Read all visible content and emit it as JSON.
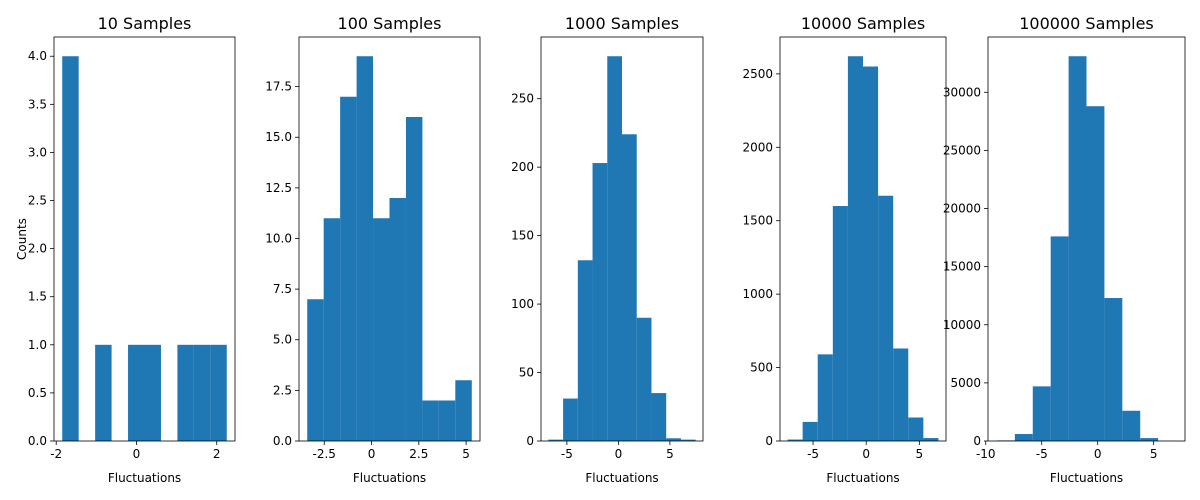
{
  "figure": {
    "ylabel": "Counts",
    "bar_color": "#1f77b4"
  },
  "chart_data": [
    {
      "type": "bar",
      "title": "10 Samples",
      "xlabel": "Fluctuations",
      "ylabel": "Counts",
      "bin_edges": [
        -1.85,
        -1.44,
        -1.03,
        -0.62,
        -0.21,
        0.2,
        0.61,
        1.02,
        1.43,
        1.84,
        2.25
      ],
      "values": [
        4,
        0,
        1,
        0,
        1,
        1,
        0,
        1,
        1,
        1
      ],
      "xlim": [
        -2.055,
        2.455
      ],
      "ylim": [
        0,
        4.2
      ],
      "xticks": [
        -2,
        0,
        2
      ],
      "yticks": [
        0.0,
        0.5,
        1.0,
        1.5,
        2.0,
        2.5,
        3.0,
        3.5,
        4.0
      ]
    },
    {
      "type": "bar",
      "title": "100 Samples",
      "xlabel": "Fluctuations",
      "bin_edges": [
        -3.4,
        -2.53,
        -1.66,
        -0.79,
        0.08,
        0.95,
        1.82,
        2.69,
        3.56,
        4.43,
        5.3
      ],
      "values": [
        7,
        11,
        17,
        19,
        11,
        12,
        16,
        2,
        2,
        3
      ],
      "xlim": [
        -3.835,
        5.735
      ],
      "ylim": [
        0,
        19.95
      ],
      "xticks": [
        -2.5,
        0.0,
        2.5,
        5.0
      ],
      "yticks": [
        0.0,
        2.5,
        5.0,
        7.5,
        10.0,
        12.5,
        15.0,
        17.5
      ]
    },
    {
      "type": "bar",
      "title": "1000 Samples",
      "xlabel": "Fluctuations",
      "bin_edges": [
        -6.8,
        -5.37,
        -3.94,
        -2.51,
        -1.08,
        0.35,
        1.78,
        3.21,
        4.64,
        6.07,
        7.5
      ],
      "values": [
        1,
        31,
        132,
        203,
        281,
        224,
        90,
        35,
        2,
        1
      ],
      "xlim": [
        -7.515,
        8.215
      ],
      "ylim": [
        0,
        295.05
      ],
      "xticks": [
        -5,
        0,
        5
      ],
      "yticks": [
        0,
        50,
        100,
        150,
        200,
        250
      ]
    },
    {
      "type": "bar",
      "title": "10000 Samples",
      "xlabel": "Fluctuations",
      "bin_edges": [
        -7.4,
        -5.98,
        -4.56,
        -3.14,
        -1.72,
        -0.3,
        1.12,
        2.54,
        3.96,
        5.38,
        6.8
      ],
      "values": [
        10,
        130,
        590,
        1600,
        2620,
        2550,
        1670,
        630,
        160,
        20
      ],
      "xlim": [
        -8.11,
        7.51
      ],
      "ylim": [
        0,
        2751
      ],
      "xticks": [
        -5,
        0,
        5
      ],
      "yticks": [
        0,
        500,
        1000,
        1500,
        2000,
        2500
      ]
    },
    {
      "type": "bar",
      "title": "100000 Samples",
      "xlabel": "Fluctuations",
      "bin_edges": [
        -9.0,
        -7.4,
        -5.8,
        -4.2,
        -2.6,
        -1.0,
        0.6,
        2.2,
        3.8,
        5.4,
        7.0
      ],
      "values": [
        50,
        600,
        4700,
        17600,
        33100,
        28800,
        12300,
        2600,
        250,
        10
      ],
      "xlim": [
        -9.8,
        7.8
      ],
      "ylim": [
        0,
        34755
      ],
      "xticks": [
        -10,
        -5,
        0,
        5
      ],
      "yticks": [
        0,
        5000,
        10000,
        15000,
        20000,
        25000,
        30000
      ]
    }
  ]
}
